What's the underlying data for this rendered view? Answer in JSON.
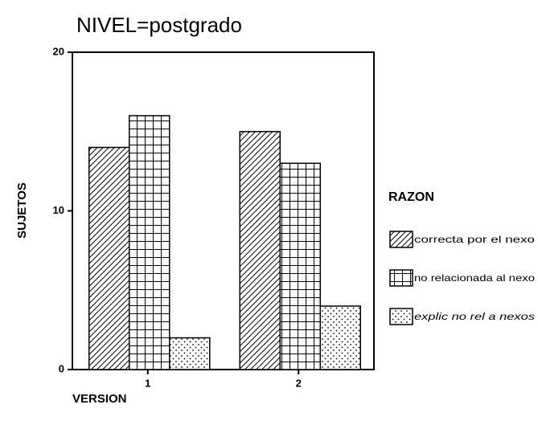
{
  "chart_data": {
    "type": "bar",
    "title": "NIVEL=postgrado",
    "x_label": "VERSION",
    "y_label": "SUJETOS",
    "categories": [
      "1",
      "2"
    ],
    "series": [
      {
        "name": "correcta por el nexo",
        "color": "#000000",
        "pattern": "hatch",
        "values": [
          14,
          15
        ]
      },
      {
        "name": "no relacionada al nexo",
        "color": "#000000",
        "pattern": "grid",
        "values": [
          16,
          13
        ]
      },
      {
        "name": "explic no rel a nexos",
        "color": "#000000",
        "pattern": "dots",
        "values": [
          2,
          4
        ]
      }
    ],
    "legend_title": "RAZON",
    "ylim": [
      0,
      20
    ],
    "yticks": [
      0,
      10,
      20
    ]
  }
}
